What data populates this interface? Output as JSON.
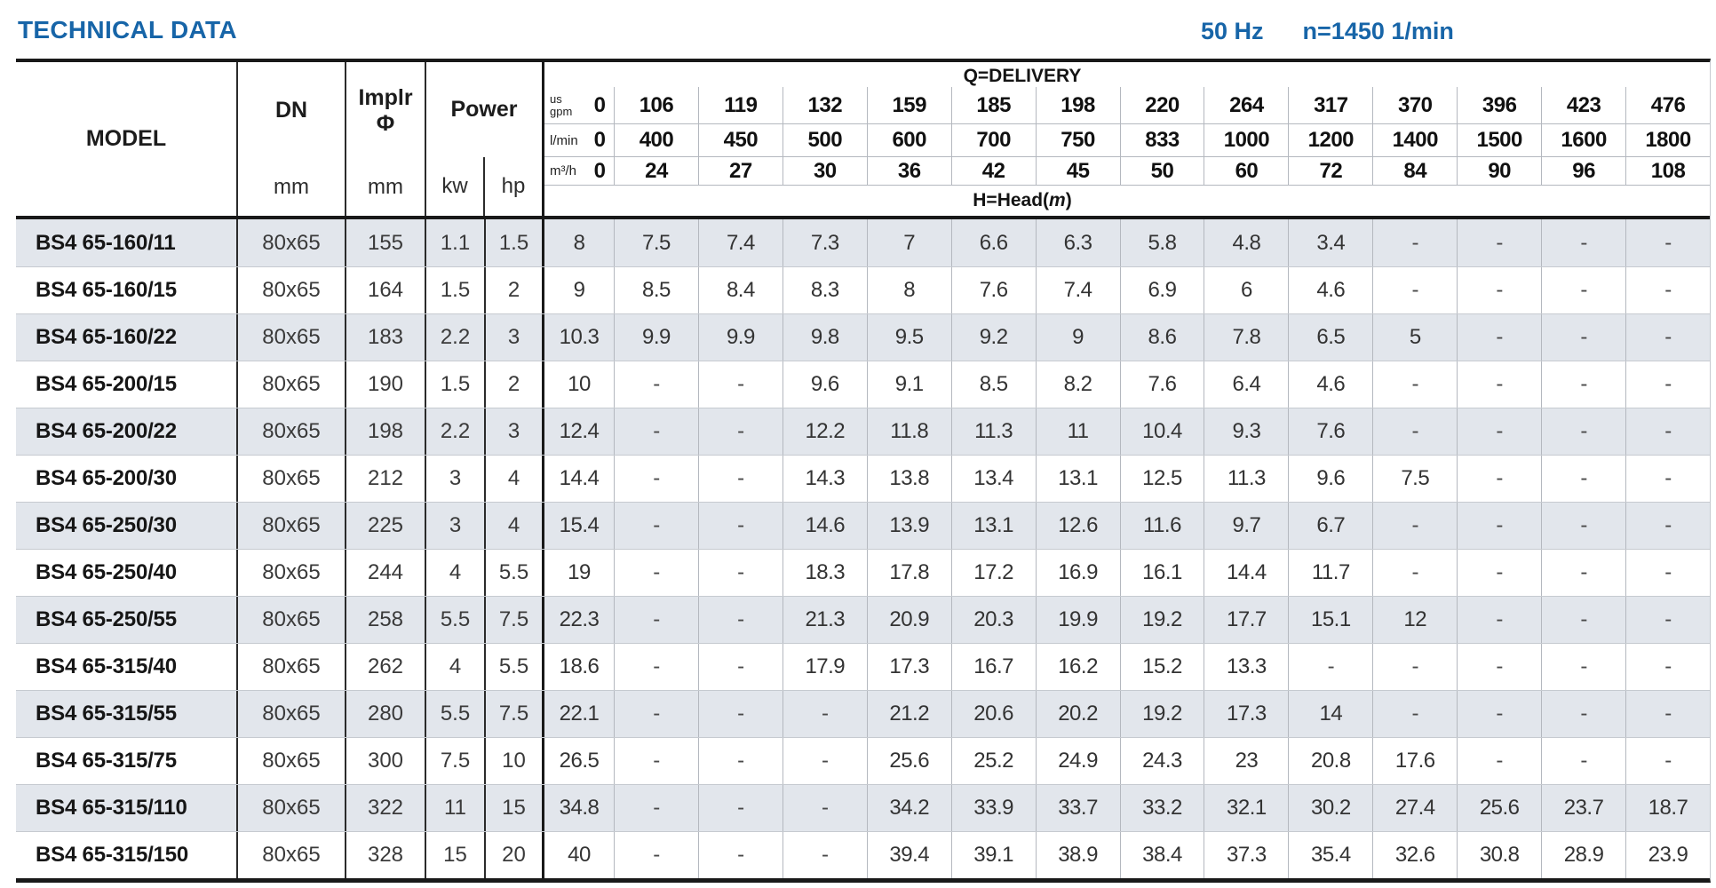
{
  "page": {
    "title": "TECHNICAL DATA",
    "frequency": "50 Hz",
    "speed": "n=1450 1/min"
  },
  "colors": {
    "accent": "#1765a8",
    "row_shade": "#e2e6ec",
    "grid_line": "#b4b8bf",
    "frame": "#191919"
  },
  "table": {
    "header": {
      "model_label": "MODEL",
      "dn_label": "DN",
      "dn_unit": "mm",
      "impeller_label": "Implr",
      "impeller_symbol": "Φ",
      "impeller_unit": "mm",
      "power_label": "Power",
      "kw_label": "kw",
      "hp_label": "hp",
      "delivery_label": "Q=DELIVERY",
      "head_prefix": "H=Head(",
      "head_italic": "m",
      "head_suffix": ")",
      "unit_us": "us",
      "unit_gpm": "gpm",
      "unit_lmin": "l/min",
      "unit_m3h": "m³/h",
      "flow_rows": {
        "us_gpm": [
          "0",
          "106",
          "119",
          "132",
          "159",
          "185",
          "198",
          "220",
          "264",
          "317",
          "370",
          "396",
          "423",
          "476"
        ],
        "l_min": [
          "0",
          "400",
          "450",
          "500",
          "600",
          "700",
          "750",
          "833",
          "1000",
          "1200",
          "1400",
          "1500",
          "1600",
          "1800"
        ],
        "m3_h": [
          "0",
          "24",
          "27",
          "30",
          "36",
          "42",
          "45",
          "50",
          "60",
          "72",
          "84",
          "90",
          "96",
          "108"
        ]
      }
    },
    "rows": [
      {
        "model": "BS4 65-160/11",
        "dn": "80x65",
        "impeller": "155",
        "kw": "1.1",
        "hp": "1.5",
        "head": [
          "8",
          "7.5",
          "7.4",
          "7.3",
          "7",
          "6.6",
          "6.3",
          "5.8",
          "4.8",
          "3.4",
          "-",
          "-",
          "-",
          "-"
        ]
      },
      {
        "model": "BS4 65-160/15",
        "dn": "80x65",
        "impeller": "164",
        "kw": "1.5",
        "hp": "2",
        "head": [
          "9",
          "8.5",
          "8.4",
          "8.3",
          "8",
          "7.6",
          "7.4",
          "6.9",
          "6",
          "4.6",
          "-",
          "-",
          "-",
          "-"
        ]
      },
      {
        "model": "BS4 65-160/22",
        "dn": "80x65",
        "impeller": "183",
        "kw": "2.2",
        "hp": "3",
        "head": [
          "10.3",
          "9.9",
          "9.9",
          "9.8",
          "9.5",
          "9.2",
          "9",
          "8.6",
          "7.8",
          "6.5",
          "5",
          "-",
          "-",
          "-"
        ]
      },
      {
        "model": "BS4 65-200/15",
        "dn": "80x65",
        "impeller": "190",
        "kw": "1.5",
        "hp": "2",
        "head": [
          "10",
          "-",
          "-",
          "9.6",
          "9.1",
          "8.5",
          "8.2",
          "7.6",
          "6.4",
          "4.6",
          "-",
          "-",
          "-",
          "-"
        ]
      },
      {
        "model": "BS4 65-200/22",
        "dn": "80x65",
        "impeller": "198",
        "kw": "2.2",
        "hp": "3",
        "head": [
          "12.4",
          "-",
          "-",
          "12.2",
          "11.8",
          "11.3",
          "11",
          "10.4",
          "9.3",
          "7.6",
          "-",
          "-",
          "-",
          "-"
        ]
      },
      {
        "model": "BS4 65-200/30",
        "dn": "80x65",
        "impeller": "212",
        "kw": "3",
        "hp": "4",
        "head": [
          "14.4",
          "-",
          "-",
          "14.3",
          "13.8",
          "13.4",
          "13.1",
          "12.5",
          "11.3",
          "9.6",
          "7.5",
          "-",
          "-",
          "-"
        ]
      },
      {
        "model": "BS4 65-250/30",
        "dn": "80x65",
        "impeller": "225",
        "kw": "3",
        "hp": "4",
        "head": [
          "15.4",
          "-",
          "-",
          "14.6",
          "13.9",
          "13.1",
          "12.6",
          "11.6",
          "9.7",
          "6.7",
          "-",
          "-",
          "-",
          "-"
        ]
      },
      {
        "model": "BS4 65-250/40",
        "dn": "80x65",
        "impeller": "244",
        "kw": "4",
        "hp": "5.5",
        "head": [
          "19",
          "-",
          "-",
          "18.3",
          "17.8",
          "17.2",
          "16.9",
          "16.1",
          "14.4",
          "11.7",
          "-",
          "-",
          "-",
          "-"
        ]
      },
      {
        "model": "BS4 65-250/55",
        "dn": "80x65",
        "impeller": "258",
        "kw": "5.5",
        "hp": "7.5",
        "head": [
          "22.3",
          "-",
          "-",
          "21.3",
          "20.9",
          "20.3",
          "19.9",
          "19.2",
          "17.7",
          "15.1",
          "12",
          "-",
          "-",
          "-"
        ]
      },
      {
        "model": "BS4 65-315/40",
        "dn": "80x65",
        "impeller": "262",
        "kw": "4",
        "hp": "5.5",
        "head": [
          "18.6",
          "-",
          "-",
          "17.9",
          "17.3",
          "16.7",
          "16.2",
          "15.2",
          "13.3",
          "-",
          "-",
          "-",
          "-",
          "-"
        ]
      },
      {
        "model": "BS4 65-315/55",
        "dn": "80x65",
        "impeller": "280",
        "kw": "5.5",
        "hp": "7.5",
        "head": [
          "22.1",
          "-",
          "-",
          "-",
          "21.2",
          "20.6",
          "20.2",
          "19.2",
          "17.3",
          "14",
          "-",
          "-",
          "-",
          "-"
        ]
      },
      {
        "model": "BS4 65-315/75",
        "dn": "80x65",
        "impeller": "300",
        "kw": "7.5",
        "hp": "10",
        "head": [
          "26.5",
          "-",
          "-",
          "-",
          "25.6",
          "25.2",
          "24.9",
          "24.3",
          "23",
          "20.8",
          "17.6",
          "-",
          "-",
          "-"
        ]
      },
      {
        "model": "BS4 65-315/110",
        "dn": "80x65",
        "impeller": "322",
        "kw": "11",
        "hp": "15",
        "head": [
          "34.8",
          "-",
          "-",
          "-",
          "34.2",
          "33.9",
          "33.7",
          "33.2",
          "32.1",
          "30.2",
          "27.4",
          "25.6",
          "23.7",
          "18.7"
        ]
      },
      {
        "model": "BS4 65-315/150",
        "dn": "80x65",
        "impeller": "328",
        "kw": "15",
        "hp": "20",
        "head": [
          "40",
          "-",
          "-",
          "-",
          "39.4",
          "39.1",
          "38.9",
          "38.4",
          "37.3",
          "35.4",
          "32.6",
          "30.8",
          "28.9",
          "23.9"
        ]
      }
    ]
  }
}
